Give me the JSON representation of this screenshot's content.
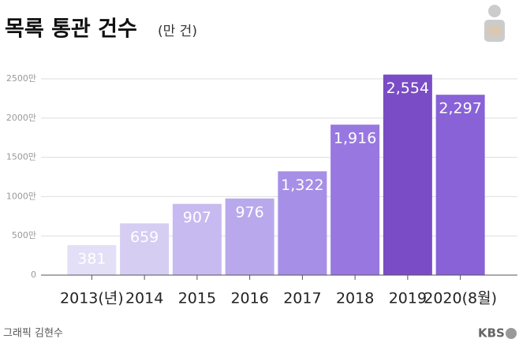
{
  "chart_data": {
    "type": "bar",
    "title": "목록 통관 건수",
    "subtitle": "(만 건)",
    "categories": [
      "2013(년)",
      "2014",
      "2015",
      "2016",
      "2017",
      "2018",
      "2019",
      "2020(8월)"
    ],
    "values": [
      381,
      659,
      907,
      976,
      1322,
      1916,
      2554,
      2297
    ],
    "value_labels": [
      "381",
      "659",
      "907",
      "976",
      "1,322",
      "1,916",
      "2,554",
      "2,297"
    ],
    "colors": [
      "#e3dff6",
      "#d6cdf3",
      "#c7baf0",
      "#b9a9ec",
      "#a68fe6",
      "#9878e0",
      "#7a4cc6",
      "#8862d6"
    ],
    "ylim": [
      0,
      2600
    ],
    "yticks": [
      0,
      {
        "value": 500,
        "label": "500만"
      },
      {
        "value": 1000,
        "label": "1000만"
      },
      {
        "value": 1500,
        "label": "1500만"
      },
      {
        "value": 2000,
        "label": "2000만"
      },
      {
        "value": 2500,
        "label": "2500만"
      }
    ],
    "grid": true
  },
  "footer": {
    "credit": "그래픽 김현수",
    "logo": "KBS"
  }
}
